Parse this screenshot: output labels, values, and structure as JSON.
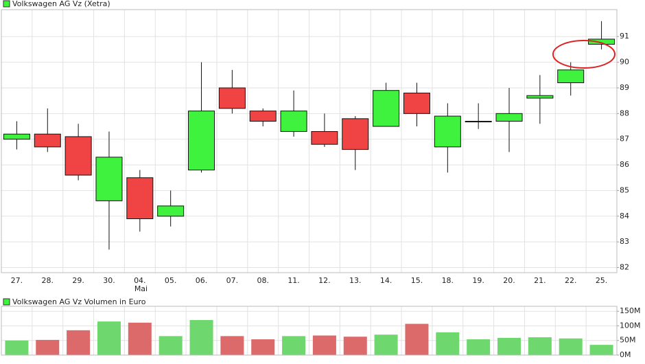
{
  "chart_data": [
    {
      "type": "candlestick",
      "title": "Volkswagen AG Vz (Xetra)",
      "categories": [
        "27.",
        "28.",
        "29.",
        "30.",
        "04.",
        "05.",
        "06.",
        "07.",
        "08.",
        "11.",
        "12.",
        "13.",
        "14.",
        "15.",
        "18.",
        "19.",
        "20.",
        "21.",
        "22.",
        "25."
      ],
      "category_sublabels": [
        null,
        null,
        null,
        null,
        "Mai",
        null,
        null,
        null,
        null,
        null,
        null,
        null,
        null,
        null,
        null,
        null,
        null,
        null,
        null,
        null
      ],
      "open": [
        87.0,
        87.2,
        87.1,
        84.6,
        85.5,
        84.0,
        85.8,
        89.0,
        88.1,
        87.3,
        87.3,
        87.8,
        87.5,
        88.8,
        86.7,
        87.7,
        87.7,
        88.6,
        89.2,
        90.7
      ],
      "high": [
        87.7,
        88.2,
        87.6,
        87.3,
        85.8,
        85.0,
        90.0,
        89.7,
        88.2,
        88.9,
        88.0,
        87.9,
        89.2,
        89.2,
        88.4,
        88.4,
        89.0,
        89.5,
        90.0,
        91.6
      ],
      "low": [
        86.6,
        86.5,
        85.4,
        82.7,
        83.4,
        83.6,
        85.7,
        88.0,
        87.5,
        87.1,
        86.7,
        85.8,
        87.5,
        87.5,
        85.7,
        87.4,
        86.5,
        87.6,
        88.7,
        90.5
      ],
      "close": [
        87.2,
        86.7,
        85.6,
        86.3,
        83.9,
        84.4,
        88.1,
        88.2,
        87.7,
        88.1,
        86.8,
        86.6,
        88.9,
        88.0,
        87.9,
        87.7,
        88.0,
        88.7,
        89.7,
        90.9
      ],
      "up_color": "#3ef23e",
      "down_color": "#f04444",
      "ylim": [
        81.8,
        92.05
      ],
      "yticks": [
        82,
        83,
        84,
        85,
        86,
        87,
        88,
        89,
        90,
        91
      ],
      "grid": true
    },
    {
      "type": "bar",
      "title": "Volkswagen AG Vz Volumen in Euro",
      "values": [
        50,
        52,
        85,
        115,
        111,
        65,
        120,
        65,
        54,
        65,
        67,
        63,
        70,
        107,
        78,
        54,
        59,
        61,
        57,
        35
      ],
      "up_color": "#6ed86e",
      "down_color": "#dc6a6a",
      "ylim": [
        0,
        167
      ],
      "yticks": [
        {
          "value": 0,
          "label": "0M"
        },
        {
          "value": 50,
          "label": "50M"
        },
        {
          "value": 100,
          "label": "100M"
        },
        {
          "value": 150,
          "label": "150M"
        }
      ],
      "grid": true
    }
  ]
}
